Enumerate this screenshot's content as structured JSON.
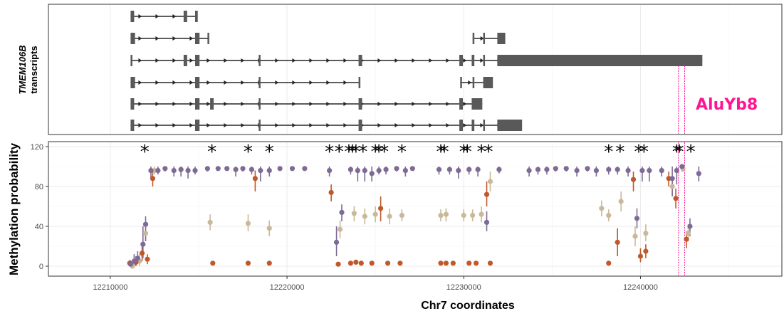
{
  "chart_data": [
    {
      "type": "diagram",
      "ylabel_gene": "TMEM106B",
      "ylabel_rest": "transcripts",
      "annotation_label": "AluYb8",
      "annotation_x": [
        12242150,
        12242500
      ],
      "colors": {
        "gene": "#595959",
        "line": "#262626",
        "annotation": "#ff1493"
      },
      "transcripts": [
        {
          "start": 12211150,
          "end": 12214900,
          "exons": [
            [
              12211150,
              12211350
            ],
            [
              12214150,
              12214350
            ],
            [
              12214800,
              12214950
            ]
          ]
        },
        {
          "start": 12211150,
          "end": 12215600,
          "exons": [
            [
              12211150,
              12211400
            ],
            [
              12214800,
              12215050
            ],
            [
              12215500,
              12215600
            ]
          ],
          "start2": 12230500,
          "end2": 12232300,
          "exons2": [
            [
              12230500,
              12230600
            ],
            [
              12231100,
              12231200
            ],
            [
              12231900,
              12232350
            ]
          ]
        },
        {
          "start": 12211150,
          "end": 12243500,
          "exons": [
            [
              12211150,
              12211250
            ],
            [
              12214150,
              12214350
            ],
            [
              12214800,
              12215050
            ],
            [
              12218400,
              12218500
            ],
            [
              12224050,
              12224250
            ],
            [
              12229750,
              12229950
            ],
            [
              12230450,
              12230600
            ],
            [
              12231100,
              12231200
            ],
            [
              12231900,
              12243500
            ]
          ]
        },
        {
          "start": 12211150,
          "end": 12224150,
          "exons": [
            [
              12211150,
              12211400
            ],
            [
              12214800,
              12215050
            ],
            [
              12218400,
              12218500
            ],
            [
              12224050,
              12224150
            ]
          ],
          "start2": 12229800,
          "end2": 12231650,
          "exons2": [
            [
              12229800,
              12229900
            ],
            [
              12230500,
              12230600
            ],
            [
              12231100,
              12231650
            ]
          ]
        },
        {
          "start": 12211150,
          "end": 12231050,
          "exons": [
            [
              12211150,
              12211350
            ],
            [
              12214800,
              12215050
            ],
            [
              12215650,
              12215850
            ],
            [
              12218400,
              12218500
            ],
            [
              12224050,
              12224250
            ],
            [
              12229750,
              12229950
            ],
            [
              12230450,
              12231050
            ]
          ]
        },
        {
          "start": 12211150,
          "end": 12233300,
          "exons": [
            [
              12211150,
              12211350
            ],
            [
              12214800,
              12215050
            ],
            [
              12218400,
              12218500
            ],
            [
              12224050,
              12224250
            ],
            [
              12229750,
              12229950
            ],
            [
              12230450,
              12230600
            ],
            [
              12231100,
              12231200
            ],
            [
              12231900,
              12233300
            ]
          ]
        }
      ]
    },
    {
      "type": "scatter",
      "xlabel": "Chr7 coordinates",
      "ylabel": "Methylation probability",
      "xlim": [
        12206500,
        12248000
      ],
      "ylim": [
        -10,
        125
      ],
      "x_ticks": [
        12210000,
        12220000,
        12230000,
        12240000
      ],
      "x_tick_labels": [
        "12210000",
        "12220000",
        "12230000",
        "12240000"
      ],
      "y_ticks": [
        0,
        40,
        80,
        120
      ],
      "y_tick_labels": [
        "0",
        "40",
        "80",
        "120"
      ],
      "grid": true,
      "significance_marker": "*",
      "significant_sites": [
        12211950,
        12215750,
        12217800,
        12219000,
        12222400,
        12222950,
        12223500,
        12223700,
        12223900,
        12224300,
        12225000,
        12225200,
        12225500,
        12226500,
        12228700,
        12228900,
        12230000,
        12230200,
        12231000,
        12231400,
        12238200,
        12238850,
        12239900,
        12240200,
        12242050,
        12242200,
        12242850
      ],
      "colors": {
        "orange": "#c0582a",
        "beige": "#c9b99a",
        "purple": "#7e6a94",
        "annotation": "#ff1493"
      },
      "annotation_x": [
        12242150,
        12242500
      ],
      "series": [
        {
          "color_key": "purple",
          "points": [
            [
              12211150,
              2,
              1,
              6
            ],
            [
              12211350,
              5,
              0,
              12
            ],
            [
              12211550,
              8,
              2,
              15
            ],
            [
              12211850,
              22,
              8,
              40
            ],
            [
              12212000,
              42,
              25,
              50
            ],
            [
              12212300,
              96,
              88,
              100
            ],
            [
              12212700,
              96,
              92,
              100
            ],
            [
              12213100,
              98,
              95,
              100
            ],
            [
              12213600,
              96,
              90,
              100
            ],
            [
              12214000,
              97,
              90,
              100
            ],
            [
              12214400,
              96,
              88,
              100
            ],
            [
              12214800,
              96,
              92,
              100
            ],
            [
              12215500,
              98,
              95,
              100
            ],
            [
              12216100,
              98,
              96,
              100
            ],
            [
              12216600,
              98,
              96,
              100
            ],
            [
              12217100,
              97,
              90,
              100
            ],
            [
              12217500,
              98,
              95,
              100
            ],
            [
              12218000,
              97,
              92,
              100
            ],
            [
              12218500,
              96,
              85,
              100
            ],
            [
              12219000,
              96,
              90,
              100
            ],
            [
              12219600,
              98,
              96,
              100
            ],
            [
              12220300,
              98,
              96,
              100
            ],
            [
              12221000,
              98,
              96,
              100
            ],
            [
              12222400,
              96,
              90,
              100
            ],
            [
              12222800,
              24,
              10,
              40
            ],
            [
              12223100,
              54,
              45,
              62
            ],
            [
              12223600,
              97,
              92,
              100
            ],
            [
              12224000,
              96,
              85,
              100
            ],
            [
              12224400,
              96,
              85,
              100
            ],
            [
              12224800,
              93,
              85,
              100
            ],
            [
              12225200,
              96,
              92,
              100
            ],
            [
              12225600,
              97,
              92,
              100
            ],
            [
              12226200,
              98,
              95,
              100
            ],
            [
              12226700,
              96,
              90,
              100
            ],
            [
              12227100,
              98,
              96,
              100
            ],
            [
              12228600,
              97,
              92,
              100
            ],
            [
              12229200,
              97,
              92,
              100
            ],
            [
              12229700,
              96,
              88,
              100
            ],
            [
              12230300,
              97,
              92,
              100
            ],
            [
              12230800,
              97,
              90,
              100
            ],
            [
              12231300,
              44,
              35,
              55
            ],
            [
              12232000,
              97,
              93,
              100
            ],
            [
              12233700,
              96,
              90,
              100
            ],
            [
              12234200,
              97,
              92,
              100
            ],
            [
              12234700,
              97,
              92,
              100
            ],
            [
              12235200,
              98,
              95,
              100
            ],
            [
              12235800,
              98,
              95,
              100
            ],
            [
              12236400,
              96,
              90,
              100
            ],
            [
              12237000,
              98,
              95,
              100
            ],
            [
              12237500,
              96,
              90,
              100
            ],
            [
              12238200,
              97,
              92,
              100
            ],
            [
              12238700,
              97,
              92,
              100
            ],
            [
              12239300,
              96,
              90,
              100
            ],
            [
              12239800,
              48,
              38,
              58
            ],
            [
              12240100,
              96,
              85,
              100
            ],
            [
              12240500,
              96,
              85,
              100
            ],
            [
              12241200,
              96,
              90,
              100
            ],
            [
              12241800,
              88,
              70,
              100
            ],
            [
              12242050,
              96,
              82,
              100
            ],
            [
              12242350,
              100,
              95,
              100
            ],
            [
              12242800,
              40,
              30,
              48
            ],
            [
              12243300,
              93,
              85,
              100
            ]
          ]
        },
        {
          "color_key": "beige",
          "points": [
            [
              12211250,
              0,
              0,
              4
            ],
            [
              12211650,
              5,
              0,
              12
            ],
            [
              12212000,
              33,
              25,
              40
            ],
            [
              12212500,
              96,
              92,
              100
            ],
            [
              12215650,
              44,
              36,
              52
            ],
            [
              12217800,
              43,
              35,
              52
            ],
            [
              12219000,
              38,
              30,
              46
            ],
            [
              12223000,
              37,
              28,
              46
            ],
            [
              12223800,
              53,
              45,
              60
            ],
            [
              12224400,
              50,
              42,
              58
            ],
            [
              12225000,
              52,
              44,
              60
            ],
            [
              12225800,
              50,
              42,
              58
            ],
            [
              12226500,
              51,
              45,
              57
            ],
            [
              12228700,
              51,
              45,
              57
            ],
            [
              12229000,
              52,
              45,
              58
            ],
            [
              12230000,
              51,
              45,
              57
            ],
            [
              12230500,
              51,
              45,
              57
            ],
            [
              12231000,
              52,
              44,
              60
            ],
            [
              12231500,
              85,
              75,
              95
            ],
            [
              12237800,
              58,
              50,
              66
            ],
            [
              12238200,
              51,
              45,
              57
            ],
            [
              12238900,
              65,
              55,
              75
            ],
            [
              12239700,
              30,
              20,
              40
            ],
            [
              12240300,
              33,
              25,
              42
            ],
            [
              12241800,
              80,
              70,
              90
            ],
            [
              12242400,
              98,
              95,
              100
            ],
            [
              12242700,
              33,
              25,
              42
            ]
          ]
        },
        {
          "color_key": "orange",
          "points": [
            [
              12211100,
              3,
              1,
              6
            ],
            [
              12211450,
              4,
              0,
              10
            ],
            [
              12211800,
              13,
              5,
              22
            ],
            [
              12212100,
              7,
              2,
              12
            ],
            [
              12212400,
              88,
              80,
              95
            ],
            [
              12215800,
              3,
              2,
              4
            ],
            [
              12217800,
              3,
              2,
              4
            ],
            [
              12218200,
              88,
              75,
              96
            ],
            [
              12219000,
              3,
              2,
              4
            ],
            [
              12222500,
              74,
              65,
              82
            ],
            [
              12222900,
              2,
              1,
              3
            ],
            [
              12223600,
              3,
              2,
              4
            ],
            [
              12223900,
              4,
              3,
              5
            ],
            [
              12224200,
              3,
              2,
              4
            ],
            [
              12224800,
              3,
              2,
              4
            ],
            [
              12225300,
              58,
              45,
              70
            ],
            [
              12225700,
              3,
              2,
              4
            ],
            [
              12226400,
              3,
              2,
              4
            ],
            [
              12228700,
              3,
              2,
              4
            ],
            [
              12229000,
              3,
              2,
              4
            ],
            [
              12229400,
              3,
              2,
              4
            ],
            [
              12230300,
              3,
              2,
              4
            ],
            [
              12230700,
              3,
              2,
              4
            ],
            [
              12231300,
              72,
              60,
              85
            ],
            [
              12231500,
              3,
              2,
              4
            ],
            [
              12238200,
              3,
              2,
              4
            ],
            [
              12238700,
              24,
              10,
              38
            ],
            [
              12239600,
              87,
              75,
              95
            ],
            [
              12240000,
              10,
              4,
              18
            ],
            [
              12240300,
              15,
              8,
              22
            ],
            [
              12241600,
              88,
              80,
              95
            ],
            [
              12242000,
              68,
              58,
              78
            ],
            [
              12242600,
              27,
              18,
              35
            ]
          ]
        }
      ]
    }
  ]
}
